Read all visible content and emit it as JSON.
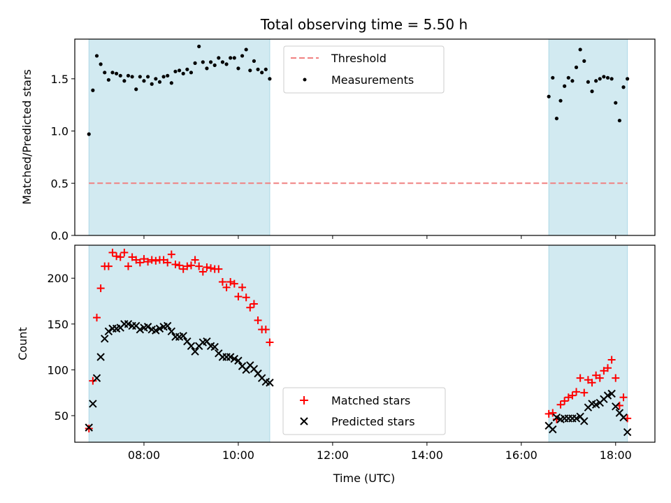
{
  "figure": {
    "title": "Total observing time = 5.50 h"
  },
  "chart_data": [
    {
      "type": "scatter",
      "panel": "top",
      "title": "Total observing time = 5.50 h",
      "xlabel": "",
      "ylabel": "Matched/Predicted stars",
      "xlim": [
        "06:32",
        "18:50"
      ],
      "ylim": [
        0,
        1.88
      ],
      "yticks": [
        "0.0",
        "0.5",
        "1.0",
        "1.5"
      ],
      "ytick_values": [
        0,
        0.5,
        1.0,
        1.5
      ],
      "grid": false,
      "legend_placement": "upper-center",
      "shaded_intervals": [
        [
          "06:50",
          "10:40"
        ],
        [
          "16:35",
          "18:15"
        ]
      ],
      "shade_color": "#add8e6",
      "threshold": {
        "name": "Threshold",
        "value": 0.5,
        "color": "#f08080",
        "style": "dashed"
      },
      "series": [
        {
          "name": "Measurements",
          "color": "#000000",
          "marker": "dot",
          "x": [
            "06:50",
            "06:55",
            "07:00",
            "07:05",
            "07:10",
            "07:15",
            "07:20",
            "07:25",
            "07:30",
            "07:35",
            "07:40",
            "07:45",
            "07:50",
            "07:55",
            "08:00",
            "08:05",
            "08:10",
            "08:15",
            "08:20",
            "08:25",
            "08:30",
            "08:35",
            "08:40",
            "08:45",
            "08:50",
            "08:55",
            "09:00",
            "09:05",
            "09:10",
            "09:15",
            "09:20",
            "09:25",
            "09:30",
            "09:35",
            "09:40",
            "09:45",
            "09:50",
            "09:55",
            "10:00",
            "10:05",
            "10:10",
            "10:15",
            "10:20",
            "10:25",
            "10:30",
            "10:35",
            "10:40",
            "16:35",
            "16:40",
            "16:45",
            "16:50",
            "16:55",
            "17:00",
            "17:05",
            "17:10",
            "17:15",
            "17:20",
            "17:25",
            "17:30",
            "17:35",
            "17:40",
            "17:45",
            "17:50",
            "17:55",
            "18:00",
            "18:05",
            "18:10",
            "18:15"
          ],
          "y": [
            0.97,
            1.39,
            1.72,
            1.64,
            1.56,
            1.49,
            1.56,
            1.55,
            1.53,
            1.48,
            1.53,
            1.52,
            1.4,
            1.52,
            1.48,
            1.52,
            1.45,
            1.5,
            1.47,
            1.52,
            1.53,
            1.46,
            1.57,
            1.58,
            1.55,
            1.59,
            1.56,
            1.65,
            1.81,
            1.66,
            1.6,
            1.66,
            1.63,
            1.7,
            1.66,
            1.64,
            1.7,
            1.7,
            1.6,
            1.72,
            1.78,
            1.58,
            1.67,
            1.59,
            1.56,
            1.59,
            1.5,
            1.33,
            1.51,
            1.12,
            1.29,
            1.43,
            1.51,
            1.48,
            1.61,
            1.78,
            1.67,
            1.47,
            1.38,
            1.48,
            1.5,
            1.52,
            1.51,
            1.5,
            1.27,
            1.1,
            1.42,
            1.5
          ]
        }
      ]
    },
    {
      "type": "scatter",
      "panel": "bottom",
      "xlabel": "Time (UTC)",
      "ylabel": "Count",
      "xlim": [
        "06:32",
        "18:50"
      ],
      "ylim": [
        21,
        236
      ],
      "xticks": [
        "08:00",
        "10:00",
        "12:00",
        "14:00",
        "16:00",
        "18:00"
      ],
      "yticks": [
        "50",
        "100",
        "150",
        "200"
      ],
      "ytick_values": [
        50,
        100,
        150,
        200
      ],
      "grid": false,
      "legend_placement": "lower-center",
      "shaded_intervals": [
        [
          "06:50",
          "10:40"
        ],
        [
          "16:35",
          "18:15"
        ]
      ],
      "shade_color": "#add8e6",
      "series": [
        {
          "name": "Matched stars",
          "color": "#ff0000",
          "marker": "plus",
          "x": [
            "06:50",
            "06:55",
            "07:00",
            "07:05",
            "07:10",
            "07:15",
            "07:20",
            "07:25",
            "07:30",
            "07:35",
            "07:40",
            "07:45",
            "07:50",
            "07:55",
            "08:00",
            "08:05",
            "08:10",
            "08:15",
            "08:20",
            "08:25",
            "08:30",
            "08:35",
            "08:40",
            "08:45",
            "08:50",
            "08:55",
            "09:00",
            "09:05",
            "09:10",
            "09:15",
            "09:20",
            "09:25",
            "09:30",
            "09:35",
            "09:40",
            "09:45",
            "09:50",
            "09:55",
            "10:00",
            "10:05",
            "10:10",
            "10:15",
            "10:20",
            "10:25",
            "10:30",
            "10:35",
            "10:40",
            "16:35",
            "16:40",
            "16:45",
            "16:50",
            "16:55",
            "17:00",
            "17:05",
            "17:10",
            "17:15",
            "17:20",
            "17:25",
            "17:30",
            "17:35",
            "17:40",
            "17:45",
            "17:50",
            "17:55",
            "18:00",
            "18:05",
            "18:10",
            "18:15"
          ],
          "y": [
            36,
            88,
            157,
            189,
            213,
            213,
            228,
            224,
            223,
            228,
            213,
            223,
            220,
            217,
            221,
            218,
            220,
            219,
            220,
            220,
            217,
            226,
            215,
            214,
            210,
            213,
            214,
            220,
            213,
            207,
            212,
            211,
            210,
            210,
            196,
            190,
            196,
            194,
            180,
            190,
            179,
            168,
            172,
            154,
            144,
            144,
            130,
            52,
            53,
            46,
            62,
            66,
            70,
            72,
            76,
            91,
            75,
            89,
            86,
            94,
            91,
            99,
            102,
            111,
            91,
            61,
            70,
            47
          ]
        },
        {
          "name": "Predicted stars",
          "color": "#000000",
          "marker": "x",
          "x": [
            "06:50",
            "06:55",
            "07:00",
            "07:05",
            "07:10",
            "07:15",
            "07:20",
            "07:25",
            "07:30",
            "07:35",
            "07:40",
            "07:45",
            "07:50",
            "07:55",
            "08:00",
            "08:05",
            "08:10",
            "08:15",
            "08:20",
            "08:25",
            "08:30",
            "08:35",
            "08:40",
            "08:45",
            "08:50",
            "08:55",
            "09:00",
            "09:05",
            "09:10",
            "09:15",
            "09:20",
            "09:25",
            "09:30",
            "09:35",
            "09:40",
            "09:45",
            "09:50",
            "09:55",
            "10:00",
            "10:05",
            "10:10",
            "10:15",
            "10:20",
            "10:25",
            "10:30",
            "10:35",
            "10:40",
            "16:35",
            "16:40",
            "16:45",
            "16:50",
            "16:55",
            "17:00",
            "17:05",
            "17:10",
            "17:15",
            "17:20",
            "17:25",
            "17:30",
            "17:35",
            "17:40",
            "17:45",
            "17:50",
            "17:55",
            "18:00",
            "18:05",
            "18:10",
            "18:15"
          ],
          "y": [
            37,
            63,
            91,
            114,
            134,
            142,
            145,
            145,
            146,
            150,
            150,
            148,
            148,
            144,
            146,
            147,
            144,
            143,
            145,
            147,
            148,
            142,
            136,
            136,
            137,
            131,
            126,
            120,
            126,
            130,
            131,
            126,
            125,
            118,
            114,
            114,
            114,
            112,
            110,
            104,
            100,
            105,
            101,
            96,
            91,
            87,
            86,
            39,
            35,
            48,
            46,
            47,
            47,
            47,
            47,
            49,
            44,
            59,
            63,
            62,
            64,
            68,
            72,
            74,
            60,
            53,
            48,
            32
          ]
        }
      ]
    }
  ]
}
